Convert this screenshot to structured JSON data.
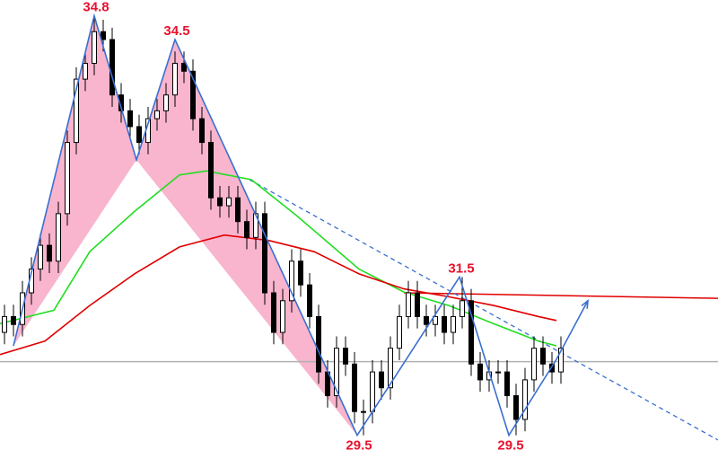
{
  "chart_data": {
    "type": "candlestick",
    "xlim": [
      0,
      80
    ],
    "ylim": [
      29.2,
      35.0
    ],
    "up_color": "#ffffff",
    "down_color": "#000000",
    "candles": {
      "open": [
        30.8,
        31.0,
        30.9,
        31.3,
        31.6,
        31.9,
        31.7,
        32.3,
        33.2,
        34.0,
        34.2,
        34.6,
        34.5,
        33.8,
        33.6,
        33.4,
        33.2,
        33.5,
        33.6,
        33.8,
        34.2,
        34.1,
        33.5,
        33.2,
        32.5,
        32.4,
        32.5,
        32.2,
        32.0,
        32.3,
        31.3,
        30.8,
        31.2,
        31.7,
        31.4,
        31.0,
        30.3,
        30.0,
        30.6,
        30.4,
        29.8,
        29.8,
        30.3,
        30.1,
        30.6,
        31.0,
        31.3,
        31.0,
        30.9,
        31.0,
        30.8,
        31.0,
        31.2,
        30.4,
        30.2,
        30.3,
        30.3,
        30.0,
        29.7,
        30.2,
        30.6,
        30.4,
        30.3
      ],
      "high": [
        31.15,
        31.15,
        31.45,
        31.75,
        32.05,
        32.05,
        32.45,
        33.35,
        34.15,
        34.35,
        34.8,
        34.75,
        34.65,
        33.95,
        33.75,
        33.55,
        33.65,
        33.75,
        33.95,
        34.35,
        34.35,
        34.25,
        33.65,
        33.35,
        32.65,
        32.65,
        32.65,
        32.35,
        32.45,
        32.45,
        31.45,
        31.35,
        31.85,
        31.85,
        31.55,
        31.15,
        30.45,
        30.75,
        30.75,
        30.55,
        29.95,
        30.45,
        30.45,
        30.75,
        31.15,
        31.45,
        31.45,
        31.15,
        31.15,
        31.15,
        31.15,
        31.5,
        31.35,
        30.55,
        30.45,
        30.45,
        30.45,
        30.15,
        30.35,
        30.75,
        30.75,
        30.55,
        30.75
      ],
      "low": [
        30.65,
        30.75,
        30.75,
        31.15,
        31.45,
        31.55,
        31.55,
        32.15,
        33.05,
        33.85,
        34.05,
        34.35,
        33.65,
        33.45,
        33.25,
        33.05,
        33.05,
        33.35,
        33.45,
        33.65,
        33.95,
        33.35,
        33.05,
        32.35,
        32.25,
        32.25,
        32.05,
        31.85,
        31.85,
        31.15,
        30.65,
        30.65,
        31.05,
        31.25,
        30.85,
        30.15,
        29.85,
        29.85,
        30.25,
        29.65,
        29.5,
        29.65,
        29.95,
        29.95,
        30.45,
        30.85,
        30.85,
        30.75,
        30.75,
        30.65,
        30.65,
        30.85,
        30.25,
        30.05,
        30.05,
        30.15,
        29.85,
        29.5,
        29.55,
        30.05,
        30.25,
        30.15,
        30.15
      ],
      "close": [
        31.0,
        30.9,
        31.3,
        31.6,
        31.9,
        31.7,
        32.3,
        33.2,
        34.0,
        34.2,
        34.6,
        34.5,
        33.8,
        33.6,
        33.4,
        33.2,
        33.5,
        33.6,
        33.8,
        34.2,
        34.1,
        33.5,
        33.2,
        32.5,
        32.4,
        32.5,
        32.2,
        32.0,
        32.3,
        31.3,
        30.8,
        31.2,
        31.7,
        31.4,
        31.0,
        30.3,
        30.0,
        30.6,
        30.4,
        29.8,
        29.8,
        30.3,
        30.1,
        30.6,
        31.0,
        31.3,
        31.0,
        30.9,
        31.0,
        30.8,
        31.0,
        31.2,
        30.4,
        30.2,
        30.3,
        30.3,
        30.0,
        29.7,
        30.2,
        30.6,
        30.4,
        30.3,
        30.6
      ]
    },
    "series": [
      {
        "color": "#22dd22",
        "x": [
          0,
          6,
          10,
          15,
          20,
          23,
          28,
          33,
          40,
          45,
          50,
          55,
          60,
          62
        ],
        "values": [
          30.91,
          31.08,
          31.82,
          32.33,
          32.79,
          32.84,
          32.73,
          32.28,
          31.6,
          31.31,
          31.14,
          30.91,
          30.69,
          30.63
        ]
      },
      {
        "color": "#e00000",
        "x": [
          0,
          5,
          10,
          15,
          20,
          25,
          30,
          35,
          40,
          45,
          50,
          55,
          60,
          62
        ],
        "values": [
          30.52,
          30.69,
          31.14,
          31.54,
          31.88,
          32.03,
          31.96,
          31.82,
          31.54,
          31.35,
          31.25,
          31.14,
          31.0,
          30.95
        ]
      }
    ],
    "pivots": {
      "color": "#3a6fd0",
      "fill": "#f7a8c4",
      "x": [
        1.5,
        10.5,
        15.2,
        19.5,
        39.8,
        51.2,
        56.7,
        62,
        65.5
      ],
      "values": [
        30.63,
        34.8,
        32.98,
        34.5,
        29.5,
        31.5,
        29.5,
        30.46,
        31.2
      ],
      "value_labels": [
        null,
        "34.8",
        null,
        "34.5",
        "29.5",
        "31.5",
        "29.5",
        null,
        null
      ],
      "label_color": "#e8112d"
    },
    "lines": [
      {
        "color": "#b0b0b0",
        "style": "solid",
        "x": [
          0,
          80
        ],
        "values": [
          30.43,
          30.43
        ]
      },
      {
        "color": "#e00000",
        "style": "solid",
        "x": [
          45,
          80
        ],
        "values": [
          31.3,
          31.23
        ]
      },
      {
        "color": "#3a6fd0",
        "style": "dashed",
        "x": [
          27.8,
          80
        ],
        "values": [
          32.73,
          29.44
        ]
      }
    ]
  }
}
